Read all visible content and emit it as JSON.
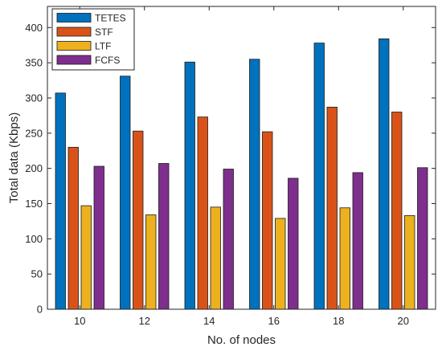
{
  "chart_data": {
    "type": "bar",
    "title": "",
    "xlabel": "No. of nodes",
    "ylabel": "Total data (Kbps)",
    "categories": [
      "10",
      "12",
      "14",
      "16",
      "18",
      "20"
    ],
    "ylim": [
      0,
      430
    ],
    "yticks": [
      0,
      50,
      100,
      150,
      200,
      250,
      300,
      350,
      400
    ],
    "grid": false,
    "legend_position": "top-left",
    "series": [
      {
        "name": "TETES",
        "color": "#0072BD",
        "values": [
          307,
          331,
          351,
          355,
          378,
          384
        ]
      },
      {
        "name": "STF",
        "color": "#D95319",
        "values": [
          230,
          253,
          273,
          252,
          287,
          280
        ]
      },
      {
        "name": "LTF",
        "color": "#EDB120",
        "values": [
          147,
          134,
          145,
          129,
          144,
          133
        ]
      },
      {
        "name": "FCFS",
        "color": "#7E2F8E",
        "values": [
          203,
          207,
          199,
          186,
          194,
          201
        ]
      }
    ]
  }
}
